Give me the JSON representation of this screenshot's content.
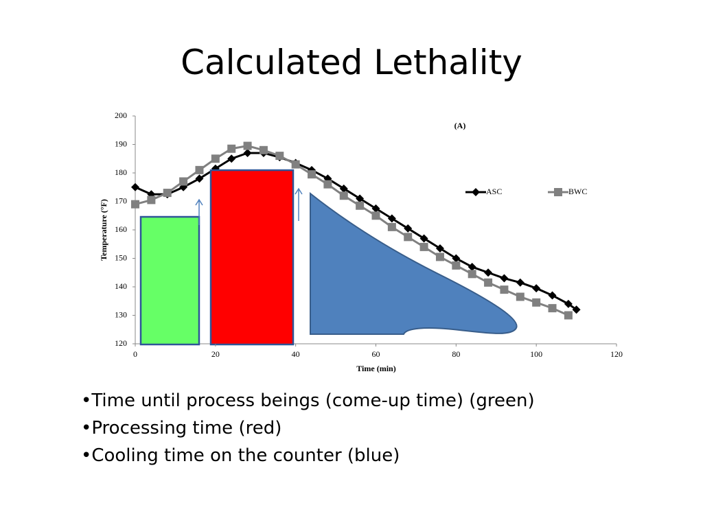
{
  "title": "Calculated Lethality",
  "chart_data": {
    "type": "line",
    "annotation": "(A)",
    "x_label": "Time (min)",
    "y_label": "Temperature (°F)",
    "x": [
      0,
      4,
      8,
      12,
      16,
      20,
      24,
      28,
      32,
      36,
      40,
      44,
      48,
      52,
      56,
      60,
      64,
      68,
      72,
      76,
      80,
      84,
      88,
      92,
      96,
      100,
      104,
      108,
      110
    ],
    "series": [
      {
        "name": "ASC",
        "color": "#000000",
        "marker": "diamond",
        "values": [
          175,
          172.5,
          172.5,
          175,
          178,
          181.5,
          185,
          187,
          187,
          185.5,
          183.5,
          181,
          178,
          174.5,
          171,
          167.5,
          164,
          160.5,
          157,
          153.5,
          150,
          147,
          145,
          143,
          141.5,
          139.5,
          137,
          134,
          132
        ]
      },
      {
        "name": "BWC",
        "color": "#808080",
        "marker": "square",
        "values": [
          169,
          170.5,
          173,
          177,
          181,
          185,
          188.5,
          189.5,
          188,
          186,
          183,
          179.5,
          176,
          172,
          168.5,
          165,
          161,
          157.5,
          154,
          150.5,
          147.5,
          144.5,
          141.5,
          139,
          136.5,
          134.5,
          132.5,
          130,
          null
        ]
      }
    ],
    "xlim": [
      0,
      120
    ],
    "xticks": [
      0,
      20,
      40,
      60,
      80,
      100,
      120
    ],
    "ylim": [
      120,
      200
    ],
    "yticks": [
      120,
      130,
      140,
      150,
      160,
      170,
      180,
      190,
      200
    ]
  },
  "bullets": [
    "•Time until process beings (come-up time) (green)",
    "•Processing time (red)",
    "•Cooling time on the counter (blue)"
  ]
}
